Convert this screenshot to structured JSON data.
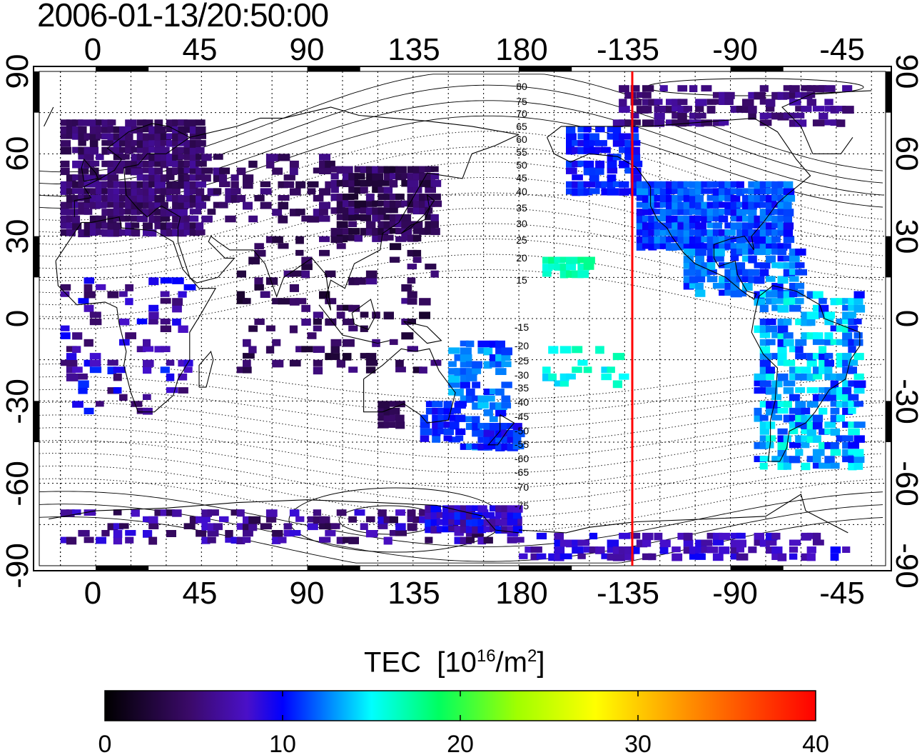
{
  "title": "2006-01-13/20:50:00",
  "map": {
    "lon_ticks": [
      "0",
      "45",
      "90",
      "135",
      "180",
      "-135",
      "-90",
      "-45"
    ],
    "lat_ticks": [
      "90",
      "60",
      "30",
      "0",
      "-30",
      "-60",
      "-90"
    ],
    "contour_labels_north": [
      "80",
      "75",
      "70",
      "65",
      "60",
      "55",
      "50",
      "45",
      "40",
      "35",
      "30",
      "25",
      "20",
      "15"
    ],
    "contour_labels_south": [
      "-15",
      "-20",
      "-25",
      "-30",
      "-35",
      "-40",
      "-45",
      "-50",
      "-55",
      "-60",
      "-65",
      "-70",
      "-75"
    ],
    "terminator_longitude": -135,
    "terminator_color": "#ff0000",
    "grid": "dotted",
    "projection": "equirectangular"
  },
  "colorbar": {
    "title": "TEC",
    "unit_base": "[10",
    "unit_exp": "16",
    "unit_mid": "/m",
    "unit_exp2": "2",
    "unit_close": "]",
    "ticks": [
      "0",
      "10",
      "20",
      "30",
      "40"
    ],
    "range": [
      0,
      40
    ],
    "colormap": [
      "#000000",
      "#3b0a6a",
      "#4a10c8",
      "#0000ff",
      "#0090ff",
      "#00ffff",
      "#00ff60",
      "#a0ff00",
      "#ffff00",
      "#ff9000",
      "#ff0000"
    ]
  }
}
